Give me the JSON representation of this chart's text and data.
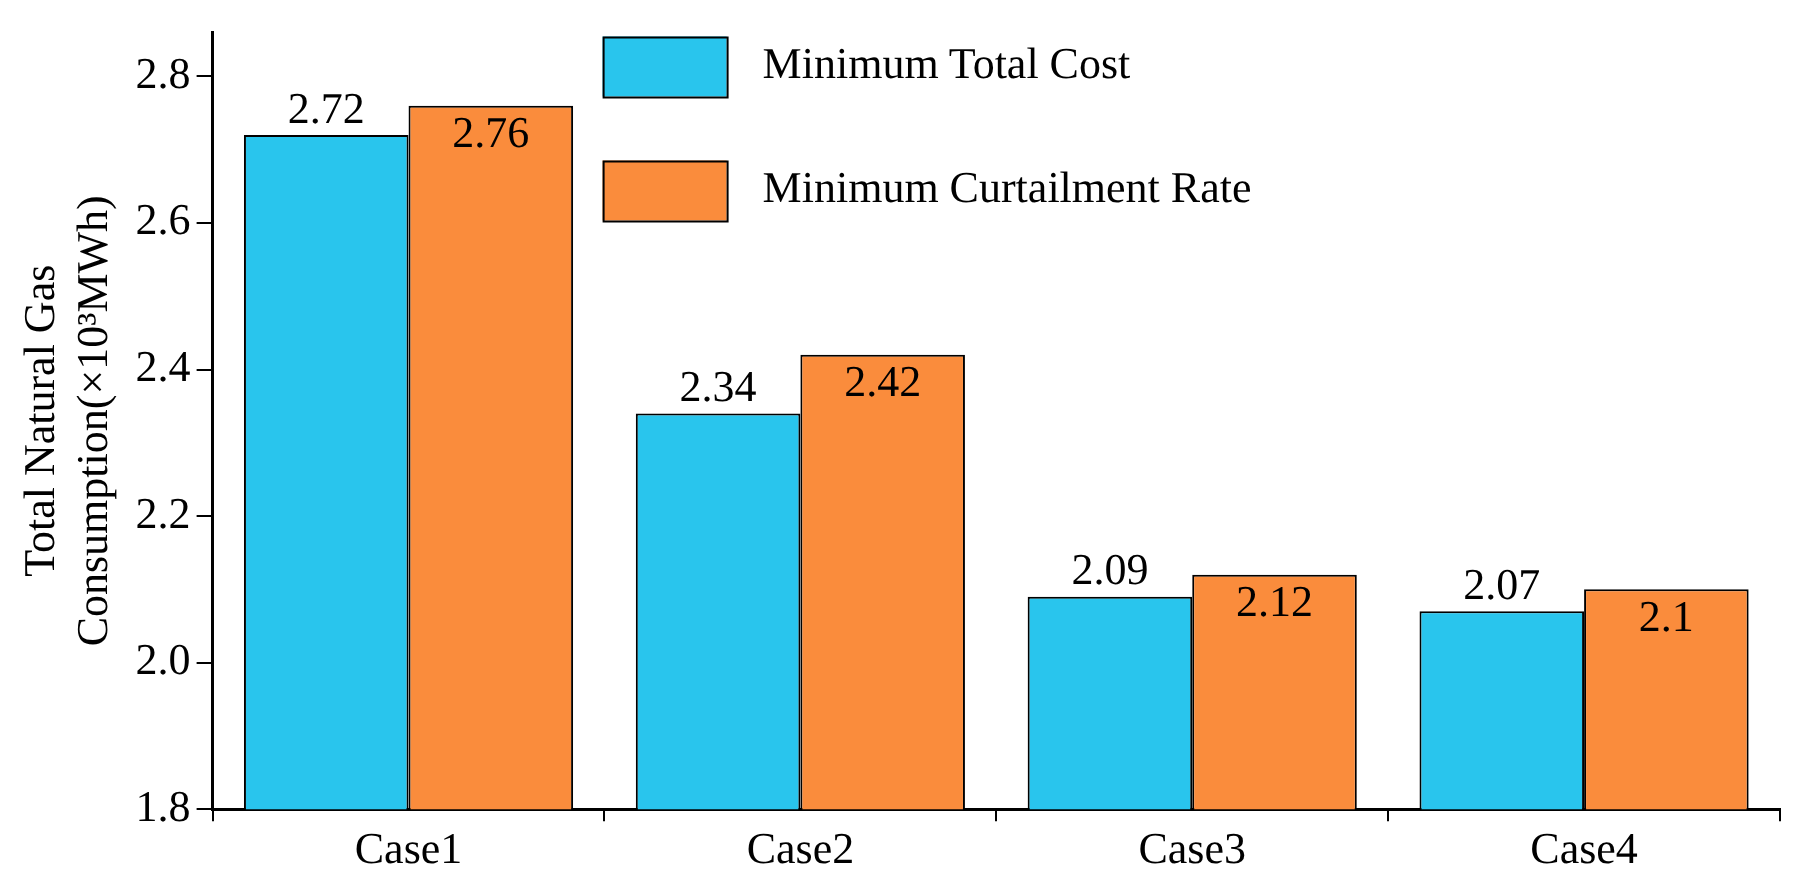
{
  "chart_data": {
    "type": "bar",
    "ylabel": [
      "Total Natural Gas",
      "Consumption(×10³MWh)"
    ],
    "categories": [
      "Case1",
      "Case2",
      "Case3",
      "Case4"
    ],
    "series": [
      {
        "name": "Minimum Total Cost",
        "color": "#29c5ed",
        "values": [
          2.72,
          2.34,
          2.09,
          2.07
        ]
      },
      {
        "name": "Minimum Curtailment Rate",
        "color": "#fa8c3c",
        "values": [
          2.76,
          2.42,
          2.12,
          2.1
        ]
      }
    ],
    "ylim": [
      1.8,
      2.86
    ],
    "yticks": [
      {
        "value": 1.8,
        "label": "1.8"
      },
      {
        "value": 2,
        "label": "2.0"
      },
      {
        "value": 2.2,
        "label": "2.2"
      },
      {
        "value": 2.4,
        "label": "2.4"
      },
      {
        "value": 2.6,
        "label": "2.6"
      },
      {
        "value": 2.8,
        "label": "2.8"
      }
    ],
    "grid": false,
    "legend": "top",
    "data_labels": true
  }
}
